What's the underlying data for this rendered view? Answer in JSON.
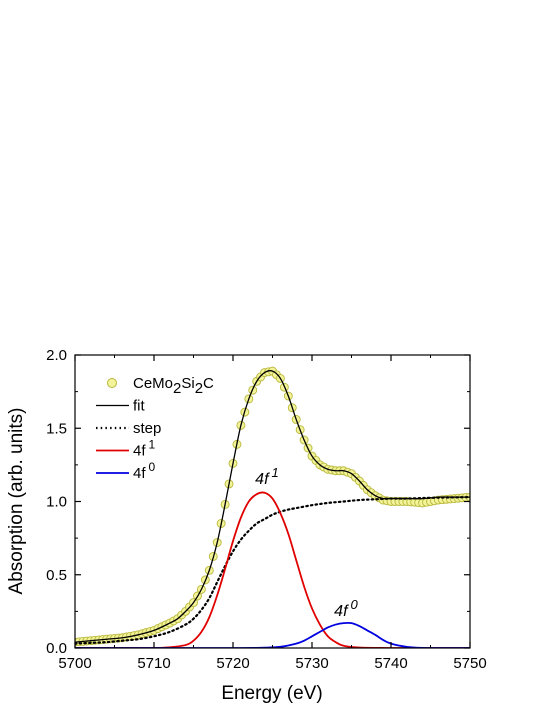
{
  "chart_data": {
    "type": "line",
    "xlabel": "Energy (eV)",
    "ylabel": "Absorption (arb. units)",
    "xlim": [
      5700,
      5750
    ],
    "ylim": [
      0.0,
      2.0
    ],
    "xticks": [
      5700,
      5710,
      5720,
      5730,
      5740,
      5750
    ],
    "yticks": [
      0.0,
      0.5,
      1.0,
      1.5,
      2.0
    ],
    "xtick_labels": [
      "5700",
      "5710",
      "5720",
      "5730",
      "5740",
      "5750"
    ],
    "ytick_labels": [
      "0.0",
      "0.5",
      "1.0",
      "1.5",
      "2.0"
    ],
    "grid": false,
    "legend_position": "top-left",
    "legend": [
      {
        "base": "CeMo",
        "sub1": "2",
        "mid": "Si",
        "sub2": "2",
        "tail": "C",
        "style": "marker"
      },
      {
        "text": "fit",
        "style": "solid-black"
      },
      {
        "text": "step",
        "style": "dotted-black"
      },
      {
        "base": "4f",
        "sup": "1",
        "style": "solid-red"
      },
      {
        "base": "4f",
        "sup": "0",
        "style": "solid-blue"
      }
    ],
    "annotations": [
      {
        "base": "4f",
        "sup": "1",
        "at": [
          5724.3,
          1.12
        ]
      },
      {
        "base": "4f",
        "sup": "0",
        "at": [
          5734.3,
          0.22
        ]
      }
    ],
    "colors": {
      "marker_fill": "#f3f39a",
      "marker_edge": "#b8b83c",
      "fit": "#000000",
      "step": "#000000",
      "f1": "#e00000",
      "f0": "#0000e0"
    },
    "series": [
      {
        "name": "CeMo2Si2C",
        "style": "marker",
        "x": [
          5700,
          5702,
          5704,
          5706,
          5708,
          5710,
          5712,
          5713,
          5714,
          5715,
          5716,
          5717,
          5718,
          5719,
          5720,
          5721,
          5722,
          5723,
          5724,
          5725,
          5726,
          5727,
          5728,
          5729,
          5730,
          5731,
          5732,
          5733,
          5734,
          5735,
          5736,
          5737,
          5738,
          5739,
          5740,
          5742,
          5744,
          5746,
          5748,
          5750
        ],
        "y": [
          0.04,
          0.05,
          0.06,
          0.07,
          0.09,
          0.12,
          0.17,
          0.2,
          0.25,
          0.31,
          0.4,
          0.53,
          0.72,
          0.98,
          1.26,
          1.52,
          1.7,
          1.82,
          1.88,
          1.89,
          1.84,
          1.72,
          1.56,
          1.42,
          1.31,
          1.25,
          1.22,
          1.21,
          1.21,
          1.19,
          1.14,
          1.08,
          1.04,
          1.01,
          1.0,
          1.0,
          0.99,
          1.01,
          1.02,
          1.03
        ]
      },
      {
        "name": "fit",
        "style": "solid-black",
        "x": [
          5700,
          5702,
          5704,
          5706,
          5708,
          5710,
          5712,
          5713,
          5714,
          5715,
          5716,
          5717,
          5718,
          5719,
          5720,
          5721,
          5722,
          5723,
          5724,
          5725,
          5726,
          5727,
          5728,
          5729,
          5730,
          5731,
          5732,
          5733,
          5734,
          5735,
          5736,
          5737,
          5738,
          5739,
          5740,
          5742,
          5744,
          5746,
          5748,
          5750
        ],
        "y": [
          0.04,
          0.05,
          0.06,
          0.07,
          0.09,
          0.12,
          0.17,
          0.2,
          0.25,
          0.31,
          0.4,
          0.53,
          0.72,
          0.98,
          1.26,
          1.52,
          1.7,
          1.82,
          1.88,
          1.89,
          1.84,
          1.72,
          1.56,
          1.42,
          1.31,
          1.25,
          1.22,
          1.21,
          1.21,
          1.19,
          1.14,
          1.08,
          1.04,
          1.02,
          1.02,
          1.02,
          1.02,
          1.03,
          1.03,
          1.03
        ]
      },
      {
        "name": "step",
        "style": "dotted-black",
        "x": [
          5700,
          5702,
          5704,
          5706,
          5708,
          5710,
          5712,
          5714,
          5715,
          5716,
          5717,
          5718,
          5719,
          5720,
          5721,
          5722,
          5723,
          5724,
          5725,
          5726,
          5727,
          5728,
          5730,
          5732,
          5734,
          5736,
          5738,
          5740,
          5742,
          5745,
          5750
        ],
        "y": [
          0.03,
          0.035,
          0.04,
          0.05,
          0.06,
          0.08,
          0.11,
          0.16,
          0.2,
          0.26,
          0.34,
          0.45,
          0.56,
          0.66,
          0.74,
          0.8,
          0.85,
          0.88,
          0.91,
          0.93,
          0.945,
          0.955,
          0.975,
          0.99,
          1.0,
          1.01,
          1.015,
          1.02,
          1.02,
          1.025,
          1.03
        ]
      },
      {
        "name": "4f 1",
        "style": "solid-red",
        "x": [
          5700,
          5706,
          5710,
          5712,
          5714,
          5715,
          5716,
          5717,
          5718,
          5719,
          5720,
          5721,
          5722,
          5723,
          5724,
          5725,
          5726,
          5727,
          5728,
          5729,
          5730,
          5731,
          5732,
          5733,
          5734,
          5736,
          5740,
          5750
        ],
        "y": [
          0.0,
          0.0,
          0.0,
          0.005,
          0.02,
          0.05,
          0.11,
          0.21,
          0.36,
          0.54,
          0.73,
          0.89,
          1.0,
          1.05,
          1.06,
          1.02,
          0.92,
          0.78,
          0.6,
          0.42,
          0.27,
          0.16,
          0.08,
          0.04,
          0.015,
          0.003,
          0.0,
          0.0
        ]
      },
      {
        "name": "4f 0",
        "style": "solid-blue",
        "x": [
          5700,
          5720,
          5724,
          5726,
          5728,
          5729,
          5730,
          5731,
          5732,
          5733,
          5734,
          5735,
          5736,
          5737,
          5738,
          5739,
          5740,
          5742,
          5744,
          5750
        ],
        "y": [
          0.0,
          0.0,
          0.002,
          0.008,
          0.03,
          0.05,
          0.08,
          0.11,
          0.14,
          0.16,
          0.17,
          0.17,
          0.15,
          0.12,
          0.09,
          0.055,
          0.03,
          0.008,
          0.001,
          0.0
        ]
      }
    ]
  }
}
